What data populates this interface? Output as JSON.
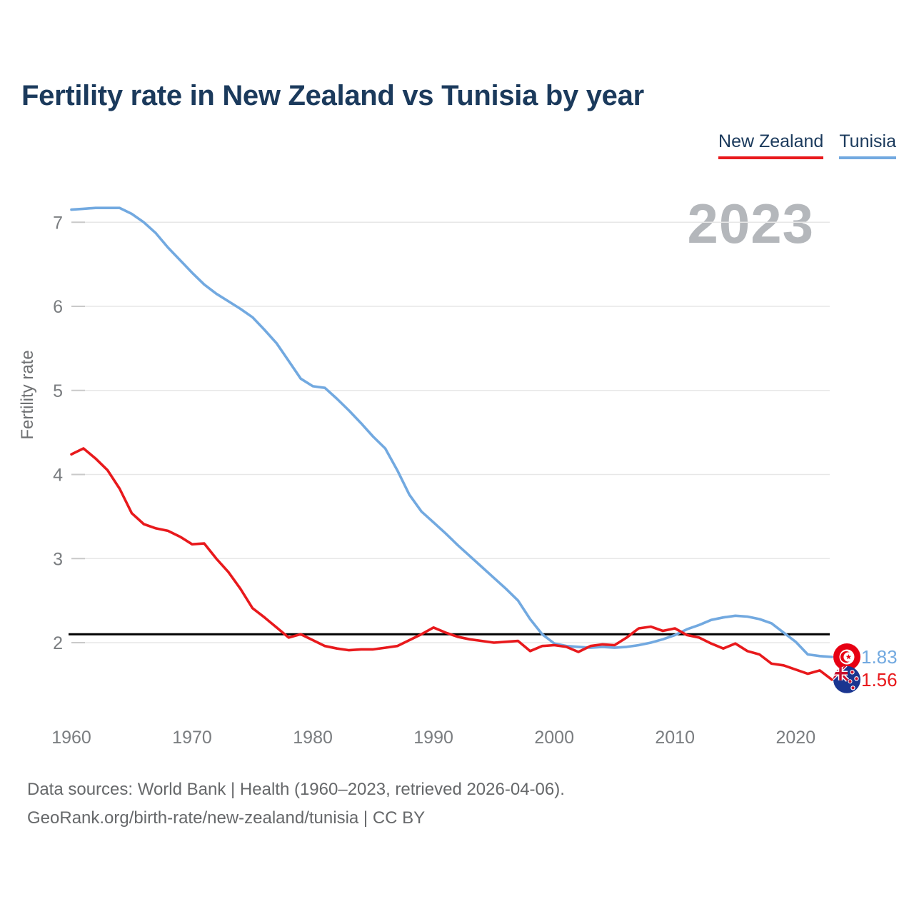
{
  "header": {
    "title": "Fertility rate in New Zealand vs Tunisia by year"
  },
  "legend": {
    "items": [
      {
        "label": "New Zealand",
        "color": "#e8191c"
      },
      {
        "label": "Tunisia",
        "color": "#72a9e0"
      }
    ]
  },
  "watermark": "2023",
  "chart_data": {
    "type": "line",
    "title": "Fertility rate in New Zealand vs Tunisia by year",
    "xlabel": "",
    "ylabel": "Fertility rate",
    "xlim": [
      1960,
      2023
    ],
    "ylim": [
      1.4,
      7.4
    ],
    "x_ticks": [
      1960,
      1970,
      1980,
      1990,
      2000,
      2010,
      2020
    ],
    "y_ticks": [
      2,
      3,
      4,
      5,
      6,
      7
    ],
    "grid": true,
    "legend_position": "top-right",
    "reference_line": {
      "value": 2.1,
      "color": "#000000"
    },
    "x": [
      1960,
      1961,
      1962,
      1963,
      1964,
      1965,
      1966,
      1967,
      1968,
      1969,
      1970,
      1971,
      1972,
      1973,
      1974,
      1975,
      1976,
      1977,
      1978,
      1979,
      1980,
      1981,
      1982,
      1983,
      1984,
      1985,
      1986,
      1987,
      1988,
      1989,
      1990,
      1991,
      1992,
      1993,
      1994,
      1995,
      1996,
      1997,
      1998,
      1999,
      2000,
      2001,
      2002,
      2003,
      2004,
      2005,
      2006,
      2007,
      2008,
      2009,
      2010,
      2011,
      2012,
      2013,
      2014,
      2015,
      2016,
      2017,
      2018,
      2019,
      2020,
      2021,
      2022,
      2023
    ],
    "series": [
      {
        "name": "Tunisia",
        "color": "#72a9e0",
        "flag": "flag-tunisia",
        "flag_icon": "tunisia-flag-icon",
        "end_label": "1.83",
        "end_value": 1.83,
        "values": [
          7.15,
          7.16,
          7.17,
          7.17,
          7.17,
          7.1,
          7.0,
          6.87,
          6.7,
          6.55,
          6.4,
          6.26,
          6.15,
          6.06,
          5.97,
          5.87,
          5.72,
          5.56,
          5.35,
          5.14,
          5.05,
          5.03,
          4.9,
          4.76,
          4.61,
          4.45,
          4.31,
          4.05,
          3.76,
          3.56,
          3.43,
          3.3,
          3.16,
          3.03,
          2.9,
          2.77,
          2.64,
          2.5,
          2.28,
          2.1,
          1.99,
          1.96,
          1.95,
          1.94,
          1.95,
          1.94,
          1.95,
          1.97,
          2.0,
          2.04,
          2.09,
          2.16,
          2.21,
          2.27,
          2.3,
          2.32,
          2.31,
          2.28,
          2.23,
          2.12,
          2.01,
          1.86,
          1.84,
          1.83
        ]
      },
      {
        "name": "New Zealand",
        "color": "#e8191c",
        "flag": "flag-nz",
        "flag_icon": "new-zealand-flag-icon",
        "end_label": "1.56",
        "end_value": 1.56,
        "values": [
          4.24,
          4.31,
          4.19,
          4.05,
          3.83,
          3.54,
          3.41,
          3.36,
          3.33,
          3.26,
          3.17,
          3.18,
          3.0,
          2.84,
          2.64,
          2.41,
          2.3,
          2.18,
          2.06,
          2.1,
          2.03,
          1.96,
          1.93,
          1.91,
          1.92,
          1.92,
          1.94,
          1.96,
          2.03,
          2.1,
          2.18,
          2.12,
          2.07,
          2.04,
          2.02,
          2.0,
          2.01,
          2.02,
          1.9,
          1.96,
          1.97,
          1.95,
          1.89,
          1.96,
          1.98,
          1.97,
          2.06,
          2.17,
          2.19,
          2.14,
          2.17,
          2.09,
          2.06,
          1.99,
          1.93,
          1.99,
          1.9,
          1.86,
          1.75,
          1.73,
          1.68,
          1.63,
          1.67,
          1.56
        ]
      }
    ]
  },
  "footer": {
    "line1": "Data sources: World Bank | Health (1960–2023, retrieved 2026-04-06).",
    "line2": "GeoRank.org/birth-rate/new-zealand/tunisia | CC BY"
  }
}
